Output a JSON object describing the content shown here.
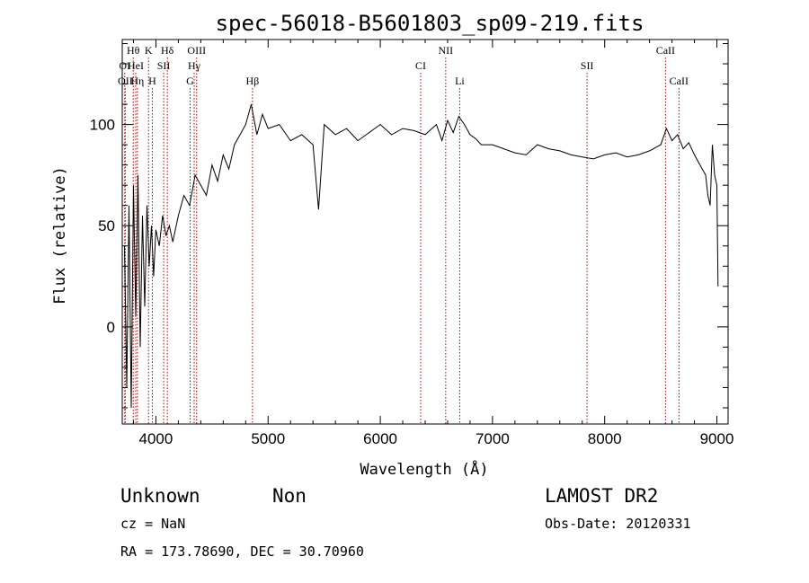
{
  "chart_data": {
    "type": "line",
    "title": "spec-56018-B5601803_sp09-219.fits",
    "xlabel": "Wavelength (Å)",
    "ylabel": "Flux (relative)",
    "xlim": [
      3700,
      9100
    ],
    "ylim": [
      -48,
      142
    ],
    "x_ticks": [
      4000,
      5000,
      6000,
      7000,
      8000,
      9000
    ],
    "y_ticks": [
      0,
      50,
      100
    ],
    "x_tick_labels": [
      "4000",
      "5000",
      "6000",
      "7000",
      "8000",
      "9000"
    ],
    "y_tick_labels": [
      "0",
      "50",
      "100"
    ],
    "grid": false,
    "series": [
      {
        "x": [
          3720,
          3740,
          3760,
          3780,
          3800,
          3820,
          3840,
          3860,
          3880,
          3900,
          3920,
          3940,
          3960,
          3980,
          4000,
          4030,
          4060,
          4090,
          4120,
          4150,
          4200,
          4250,
          4300,
          4350,
          4400,
          4450,
          4500,
          4550,
          4600,
          4650,
          4700,
          4750,
          4800,
          4850,
          4900,
          4950,
          5000,
          5100,
          5200,
          5300,
          5400,
          5450,
          5500,
          5600,
          5700,
          5800,
          5900,
          6000,
          6100,
          6200,
          6300,
          6400,
          6500,
          6550,
          6600,
          6650,
          6700,
          6750,
          6800,
          6850,
          6900,
          7000,
          7100,
          7200,
          7300,
          7400,
          7500,
          7600,
          7700,
          7800,
          7900,
          8000,
          8100,
          8200,
          8300,
          8400,
          8500,
          8550,
          8600,
          8650,
          8700,
          8750,
          8800,
          8850,
          8900,
          8920,
          8940,
          8960,
          8980,
          9000,
          9010
        ],
        "y": [
          40,
          -30,
          60,
          -40,
          70,
          5,
          75,
          -10,
          55,
          10,
          60,
          30,
          50,
          25,
          48,
          40,
          55,
          45,
          50,
          42,
          55,
          65,
          60,
          75,
          70,
          65,
          80,
          72,
          85,
          78,
          90,
          95,
          100,
          110,
          95,
          105,
          98,
          100,
          92,
          95,
          90,
          58,
          100,
          95,
          98,
          92,
          96,
          100,
          95,
          98,
          97,
          95,
          100,
          92,
          102,
          96,
          104,
          100,
          95,
          93,
          90,
          90,
          88,
          86,
          85,
          90,
          88,
          87,
          85,
          84,
          83,
          85,
          86,
          84,
          85,
          87,
          90,
          98,
          92,
          95,
          88,
          91,
          85,
          80,
          75,
          65,
          60,
          90,
          75,
          70,
          20
        ]
      }
    ],
    "line_markers": [
      {
        "label": "OI",
        "x": 3722,
        "row": 2
      },
      {
        "label": "OII",
        "x": 3727,
        "row": 3
      },
      {
        "label": "Hθ",
        "x": 3798,
        "row": 1
      },
      {
        "label": "HeI",
        "x": 3820,
        "row": 2
      },
      {
        "label": "Hη",
        "x": 3835,
        "row": 3
      },
      {
        "label": "K",
        "x": 3934,
        "row": 1
      },
      {
        "label": "H",
        "x": 3968,
        "row": 3
      },
      {
        "label": "SII",
        "x": 4069,
        "row": 2
      },
      {
        "label": "Hδ",
        "x": 4102,
        "row": 1
      },
      {
        "label": "G",
        "x": 4305,
        "row": 3
      },
      {
        "label": "OIII",
        "x": 4363,
        "row": 1
      },
      {
        "label": "Hγ",
        "x": 4341,
        "row": 2
      },
      {
        "label": "Hβ",
        "x": 4861,
        "row": 3
      },
      {
        "label": "CI",
        "x": 6360,
        "row": 2
      },
      {
        "label": "NII",
        "x": 6583,
        "row": 1
      },
      {
        "label": "Li",
        "x": 6708,
        "row": 3
      },
      {
        "label": "SII",
        "x": 7843,
        "row": 2
      },
      {
        "label": "CaII",
        "x": 8542,
        "row": 1
      },
      {
        "label": "CaII",
        "x": 8662,
        "row": 3
      }
    ]
  },
  "info": {
    "object_class": "Unknown",
    "object_subclass": "Non",
    "survey": "LAMOST DR2",
    "cz": "cz = NaN",
    "obs_date": "Obs-Date: 20120331",
    "coords": "RA = 173.78690, DEC =  30.70960"
  }
}
